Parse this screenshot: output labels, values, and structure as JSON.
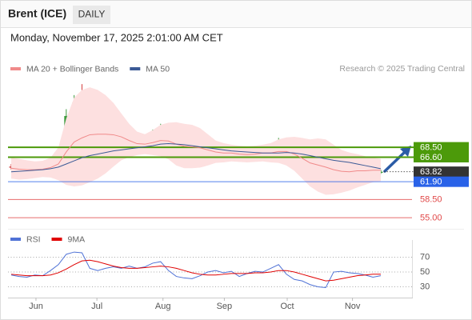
{
  "header": {
    "title": "Brent (ICE)",
    "timeframe": "DAILY",
    "datetime": "Monday, November 17, 2025 2:01:00 AM CET",
    "credit": "Research © 2025 Trading Central"
  },
  "chart_data": [
    {
      "type": "candlestick",
      "categories": [
        null,
        null,
        null,
        null,
        null,
        null,
        null,
        null,
        null,
        null,
        null,
        null,
        null,
        null,
        null,
        null,
        null,
        null,
        null,
        null,
        null,
        null,
        null,
        null,
        null,
        null,
        null,
        null,
        null,
        null,
        null,
        null,
        null,
        null,
        null,
        null,
        null,
        null,
        null,
        null,
        null,
        null,
        null,
        null,
        null,
        null,
        null,
        null
      ],
      "open": [
        64.8,
        64.6,
        64.2,
        64.0,
        64.4,
        64.3,
        65.0,
        66.8,
        74.5,
        77.0,
        76.5,
        68.5,
        68.2,
        69.0,
        69.5,
        69.2,
        69.8,
        69.3,
        69.6,
        71.5,
        72.3,
        69.0,
        67.0,
        66.5,
        66.2,
        66.8,
        67.8,
        68.0,
        67.5,
        67.8,
        66.5,
        67.2,
        67.8,
        67.5,
        68.6,
        69.5,
        67.0,
        65.5,
        64.8,
        62.5,
        61.3,
        61.0,
        65.0,
        65.2,
        64.8,
        64.7,
        64.3,
        63.6
      ],
      "high": [
        65.3,
        64.9,
        64.6,
        64.8,
        64.9,
        65.4,
        67.2,
        75.8,
        78.5,
        80.6,
        77.0,
        69.5,
        69.4,
        69.9,
        70.1,
        70.2,
        70.3,
        70.0,
        71.9,
        73.0,
        72.6,
        69.4,
        67.5,
        67.0,
        67.2,
        68.2,
        68.5,
        68.4,
        68.3,
        68.1,
        67.6,
        68.3,
        68.2,
        69.0,
        70.3,
        69.8,
        67.4,
        65.9,
        65.2,
        62.9,
        61.8,
        65.5,
        65.8,
        65.6,
        65.3,
        64.9,
        64.5,
        64.2
      ],
      "low": [
        64.2,
        63.8,
        63.6,
        63.7,
        63.9,
        64.0,
        64.8,
        66.5,
        73.8,
        75.8,
        67.8,
        67.6,
        67.9,
        68.6,
        68.8,
        68.9,
        69.0,
        68.9,
        69.3,
        71.0,
        68.7,
        66.6,
        66.2,
        65.8,
        65.9,
        66.5,
        67.4,
        67.1,
        67.2,
        66.3,
        66.2,
        66.9,
        67.1,
        67.3,
        68.4,
        66.7,
        65.2,
        64.5,
        62.2,
        61.0,
        60.2,
        60.8,
        64.6,
        64.5,
        64.3,
        63.9,
        63.3,
        63.4
      ],
      "close": [
        64.6,
        64.2,
        64.0,
        64.4,
        64.3,
        65.0,
        66.8,
        74.5,
        77.0,
        76.5,
        68.5,
        68.2,
        69.0,
        69.5,
        69.2,
        69.8,
        69.3,
        69.6,
        71.5,
        72.3,
        69.0,
        67.0,
        66.5,
        66.2,
        66.8,
        67.8,
        68.0,
        67.5,
        67.8,
        66.5,
        67.2,
        67.8,
        67.5,
        68.6,
        69.5,
        67.0,
        65.5,
        64.8,
        62.5,
        61.3,
        61.0,
        65.0,
        65.2,
        64.8,
        64.7,
        64.3,
        63.6,
        63.82
      ],
      "up_color": "#3e9b3e",
      "down_color": "#d43b3b",
      "overlays": [
        {
          "name": "MA 20 + Bollinger Bands",
          "color": "#f08a8a",
          "band_color": "#fde0e0",
          "values": [
            64.5,
            64.3,
            64.2,
            64.2,
            64.3,
            64.6,
            65.3,
            67.6,
            69.5,
            70.3,
            70.9,
            71.0,
            71.0,
            70.9,
            70.5,
            69.8,
            69.2,
            69.1,
            69.4,
            69.8,
            69.7,
            69.1,
            68.7,
            68.6,
            68.4,
            68.0,
            67.6,
            67.4,
            67.4,
            67.2,
            67.1,
            67.2,
            67.4,
            67.4,
            67.7,
            67.7,
            67.2,
            66.4,
            65.5,
            65.1,
            64.7,
            64.2,
            63.9,
            63.8,
            64.0,
            64.0,
            64.1,
            64.1
          ],
          "upper": [
            66.5,
            66.3,
            66.0,
            65.8,
            65.9,
            66.5,
            68.5,
            74.0,
            78.0,
            79.5,
            80.0,
            79.5,
            78.5,
            77.0,
            75.0,
            73.0,
            71.5,
            71.0,
            71.8,
            72.8,
            73.2,
            73.3,
            73.0,
            72.8,
            72.2,
            71.0,
            69.8,
            69.3,
            69.0,
            68.8,
            68.7,
            68.8,
            69.0,
            69.3,
            70.0,
            70.4,
            70.5,
            70.3,
            70.0,
            70.2,
            70.0,
            69.0,
            68.0,
            67.5,
            67.2,
            66.8,
            66.5,
            66.3
          ],
          "lower": [
            62.5,
            62.3,
            62.4,
            62.6,
            62.8,
            62.7,
            62.2,
            61.3,
            61.0,
            61.2,
            61.8,
            62.5,
            63.5,
            64.8,
            66.0,
            66.6,
            67.0,
            67.2,
            67.0,
            66.8,
            66.2,
            65.0,
            64.5,
            64.5,
            64.6,
            65.0,
            65.5,
            65.6,
            65.8,
            65.7,
            65.6,
            65.7,
            65.8,
            65.6,
            65.5,
            65.0,
            64.0,
            62.5,
            61.0,
            60.0,
            59.4,
            59.5,
            59.8,
            60.2,
            60.8,
            61.3,
            61.8,
            62.0
          ]
        },
        {
          "name": "MA 50",
          "color": "#3b5a96",
          "values": [
            63.8,
            63.9,
            64.0,
            64.1,
            64.2,
            64.4,
            64.7,
            65.3,
            65.9,
            66.5,
            66.9,
            67.2,
            67.5,
            67.8,
            68.0,
            68.2,
            68.4,
            68.6,
            68.8,
            69.1,
            69.2,
            69.1,
            69.0,
            68.8,
            68.6,
            68.4,
            68.2,
            68.0,
            67.8,
            67.7,
            67.6,
            67.5,
            67.4,
            67.4,
            67.4,
            67.5,
            67.4,
            67.2,
            66.9,
            66.6,
            66.3,
            66.0,
            65.8,
            65.6,
            65.3,
            65.0,
            64.7,
            64.4
          ]
        }
      ],
      "levels": [
        {
          "value": 68.5,
          "label": "68.50",
          "color": "#4c9a0a",
          "boxed": true
        },
        {
          "value": 66.6,
          "label": "66.60",
          "color": "#4c9a0a",
          "boxed": true
        },
        {
          "value": 63.82,
          "label": "63.82",
          "color": "#333333",
          "boxed": true,
          "dotted": true
        },
        {
          "value": 61.9,
          "label": "61.90",
          "color": "#2962e8",
          "boxed": true
        },
        {
          "value": 58.5,
          "label": "58.50",
          "color": "#e04848",
          "boxed": false
        },
        {
          "value": 55,
          "label": "55.00",
          "color": "#e04848",
          "boxed": false
        }
      ],
      "ylim": [
        53.8,
        83
      ],
      "xticks": [
        {
          "value": 3.15,
          "label": "Jun"
        },
        {
          "value": 10.9,
          "label": "Jul"
        },
        {
          "value": 19.3,
          "label": "Aug"
        },
        {
          "value": 27.1,
          "label": "Sep"
        },
        {
          "value": 35.1,
          "label": "Oct"
        },
        {
          "value": 43.4,
          "label": "Nov"
        }
      ]
    },
    {
      "type": "line",
      "series": [
        {
          "name": "RSI",
          "color": "#4f72d6",
          "values": [
            46,
            44,
            43,
            46,
            45,
            52,
            60,
            74,
            77,
            76,
            55,
            52,
            55,
            57,
            55,
            58,
            55,
            57,
            62,
            64,
            52,
            44,
            42,
            41,
            45,
            50,
            52,
            49,
            51,
            44,
            48,
            51,
            50,
            55,
            60,
            47,
            40,
            38,
            33,
            30,
            29,
            50,
            51,
            49,
            48,
            46,
            43,
            45
          ]
        },
        {
          "name": "9MA",
          "color": "#e00000",
          "values": [
            47,
            46,
            45,
            45,
            45,
            46,
            49,
            54,
            60,
            65,
            66,
            64,
            61,
            58,
            56,
            55,
            55,
            56,
            57,
            58,
            57,
            55,
            52,
            49,
            47,
            46,
            46,
            47,
            48,
            48,
            48,
            49,
            49,
            50,
            52,
            52,
            50,
            47,
            44,
            41,
            38,
            39,
            41,
            43,
            45,
            46,
            47,
            47
          ]
        }
      ],
      "ylim": [
        15,
        88
      ],
      "yticks": [
        30,
        50,
        70
      ],
      "grid": true
    }
  ]
}
